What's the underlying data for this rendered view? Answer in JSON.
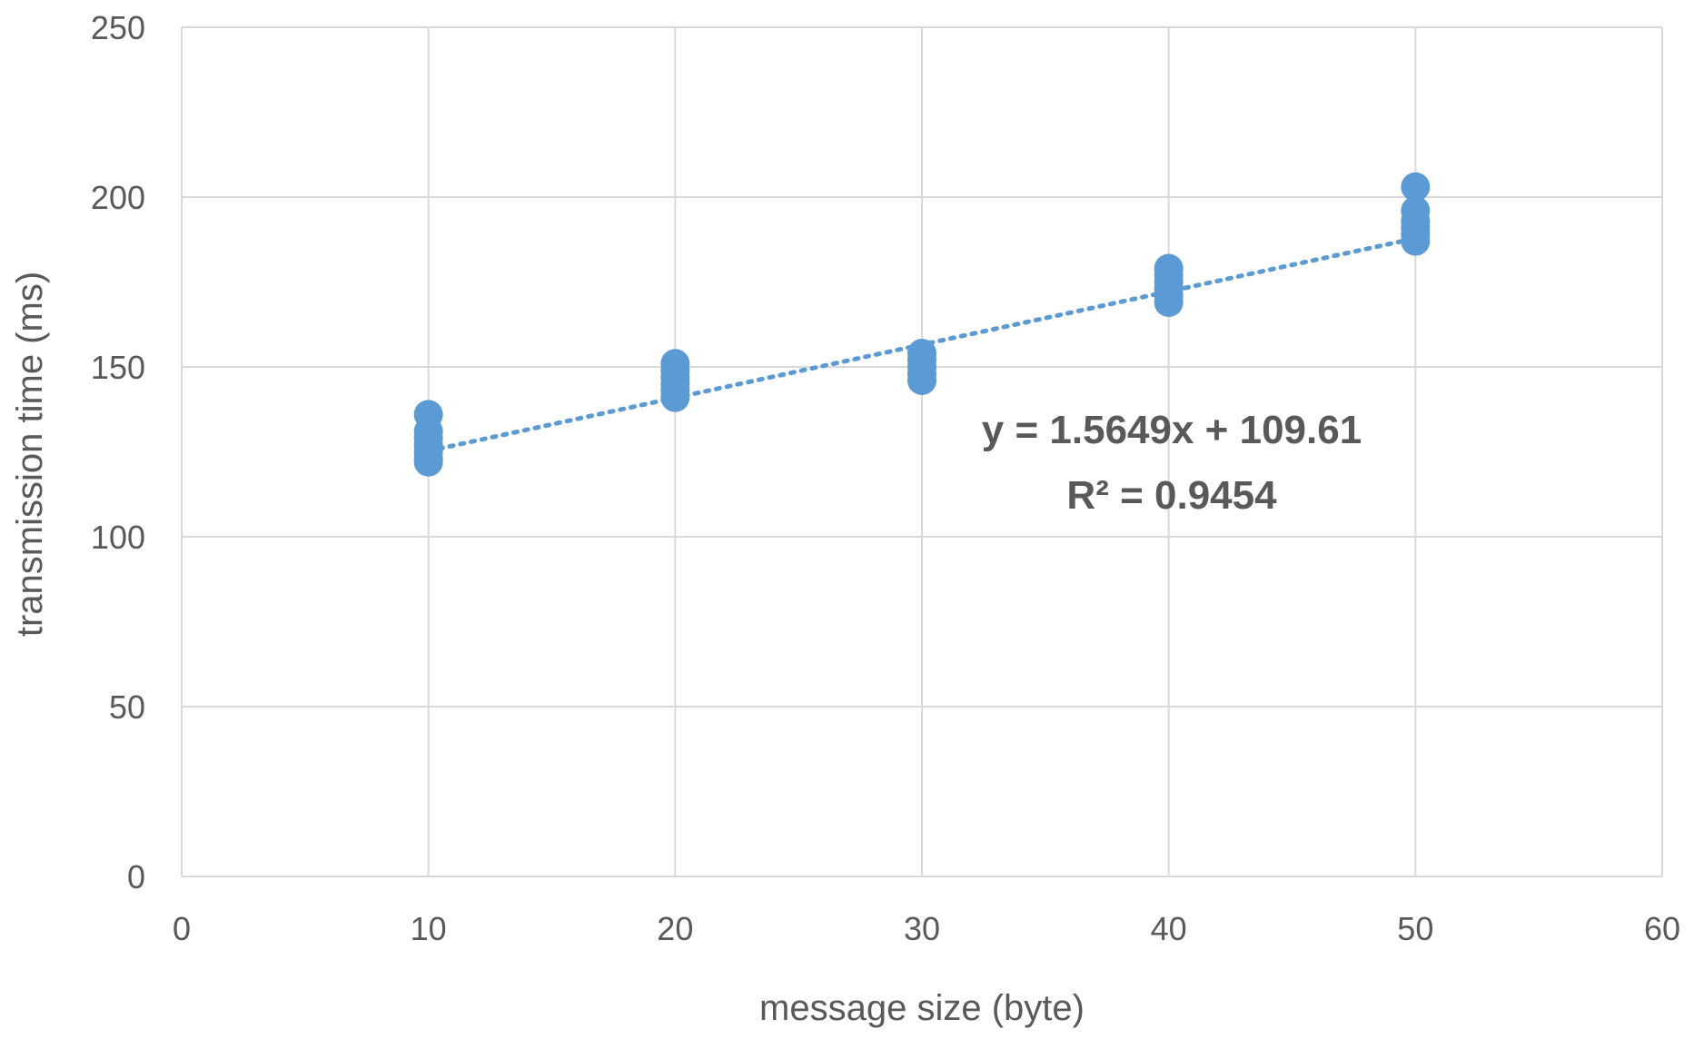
{
  "chart_data": {
    "type": "scatter",
    "title": "",
    "xlabel": "message size (byte)",
    "ylabel": "transmission time (ms)",
    "xlim": [
      0,
      60
    ],
    "ylim": [
      0,
      250
    ],
    "xticks": [
      0,
      10,
      20,
      30,
      40,
      50,
      60
    ],
    "yticks": [
      0,
      50,
      100,
      150,
      200,
      250
    ],
    "grid": true,
    "marker_color": "#5b9bd5",
    "trendline_color": "#5b9bd5",
    "series": [
      {
        "points": [
          {
            "x": 10,
            "y": 136
          },
          {
            "x": 10,
            "y": 131
          },
          {
            "x": 10,
            "y": 129
          },
          {
            "x": 10,
            "y": 127
          },
          {
            "x": 10,
            "y": 125
          },
          {
            "x": 10,
            "y": 123
          },
          {
            "x": 10,
            "y": 122
          },
          {
            "x": 20,
            "y": 151
          },
          {
            "x": 20,
            "y": 149
          },
          {
            "x": 20,
            "y": 147
          },
          {
            "x": 20,
            "y": 145
          },
          {
            "x": 20,
            "y": 143
          },
          {
            "x": 20,
            "y": 141
          },
          {
            "x": 30,
            "y": 154
          },
          {
            "x": 30,
            "y": 152
          },
          {
            "x": 30,
            "y": 150
          },
          {
            "x": 30,
            "y": 148
          },
          {
            "x": 30,
            "y": 146
          },
          {
            "x": 40,
            "y": 179
          },
          {
            "x": 40,
            "y": 177
          },
          {
            "x": 40,
            "y": 175
          },
          {
            "x": 40,
            "y": 173
          },
          {
            "x": 40,
            "y": 171
          },
          {
            "x": 40,
            "y": 169
          },
          {
            "x": 50,
            "y": 203
          },
          {
            "x": 50,
            "y": 196
          },
          {
            "x": 50,
            "y": 193
          },
          {
            "x": 50,
            "y": 191
          },
          {
            "x": 50,
            "y": 189
          },
          {
            "x": 50,
            "y": 187
          }
        ]
      }
    ],
    "trendline": {
      "type": "linear",
      "slope": 1.5649,
      "intercept": 109.61,
      "x_range": [
        10,
        50
      ],
      "style": "dotted"
    },
    "annotations": {
      "equation": "y = 1.5649x + 109.61",
      "r_squared": "R² = 0.9454"
    }
  }
}
